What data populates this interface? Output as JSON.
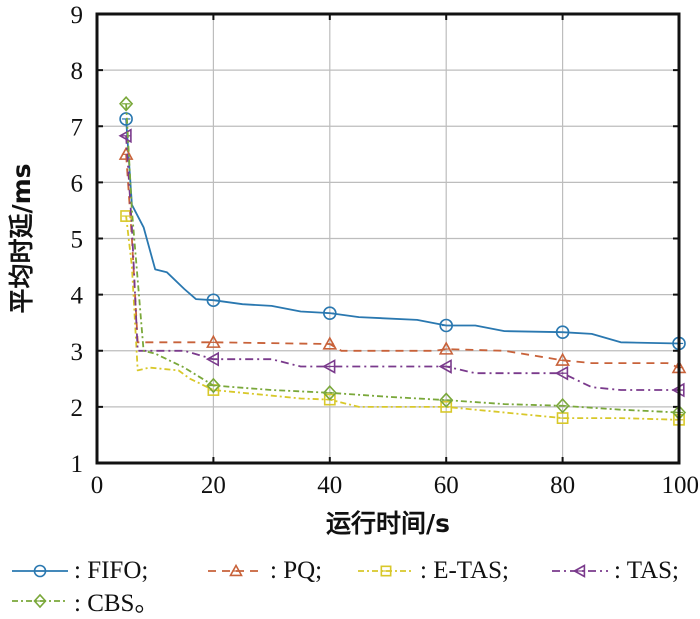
{
  "chart_data": {
    "type": "line",
    "title": "",
    "xlabel": "运行时间/s",
    "ylabel": "平均时延/ms",
    "xlim": [
      0,
      100
    ],
    "ylim": [
      1,
      9
    ],
    "xticks": [
      0,
      20,
      40,
      60,
      80,
      100
    ],
    "yticks": [
      1,
      2,
      3,
      4,
      5,
      6,
      7,
      8,
      9
    ],
    "grid": true,
    "legend_position": "bottom",
    "series": [
      {
        "name": "FIFO",
        "legend_label": ": FIFO;",
        "color": "#2a78b0",
        "dash": "solid",
        "marker": "circle",
        "points": [
          [
            5,
            7.13
          ],
          [
            6,
            5.6
          ],
          [
            8,
            5.2
          ],
          [
            10,
            4.45
          ],
          [
            12,
            4.4
          ],
          [
            15,
            4.1
          ],
          [
            17,
            3.92
          ],
          [
            20,
            3.9
          ],
          [
            25,
            3.83
          ],
          [
            30,
            3.8
          ],
          [
            35,
            3.7
          ],
          [
            40,
            3.67
          ],
          [
            45,
            3.6
          ],
          [
            55,
            3.55
          ],
          [
            60,
            3.45
          ],
          [
            65,
            3.45
          ],
          [
            70,
            3.35
          ],
          [
            80,
            3.33
          ],
          [
            85,
            3.3
          ],
          [
            90,
            3.15
          ],
          [
            100,
            3.13
          ]
        ],
        "marker_x": [
          5,
          20,
          40,
          60,
          80,
          100
        ]
      },
      {
        "name": "PQ",
        "legend_label": ": PQ;",
        "color": "#c8623a",
        "dash": "8,6",
        "marker": "triangle-up",
        "points": [
          [
            5,
            6.5
          ],
          [
            6,
            5.0
          ],
          [
            7,
            3.15
          ],
          [
            20,
            3.15
          ],
          [
            40,
            3.12
          ],
          [
            42,
            3.0
          ],
          [
            58,
            3.0
          ],
          [
            60,
            3.03
          ],
          [
            70,
            3.0
          ],
          [
            80,
            2.83
          ],
          [
            85,
            2.78
          ],
          [
            98,
            2.78
          ],
          [
            100,
            2.7
          ]
        ],
        "marker_x": [
          5,
          20,
          40,
          60,
          80,
          100
        ]
      },
      {
        "name": "E-TAS",
        "legend_label": ": E-TAS;",
        "color": "#d8c82a",
        "dash": "6,3,2,3",
        "marker": "square",
        "points": [
          [
            5,
            5.4
          ],
          [
            6,
            4.5
          ],
          [
            7,
            2.65
          ],
          [
            9,
            2.7
          ],
          [
            14,
            2.65
          ],
          [
            16,
            2.5
          ],
          [
            20,
            2.3
          ],
          [
            25,
            2.25
          ],
          [
            35,
            2.15
          ],
          [
            40,
            2.13
          ],
          [
            45,
            2.0
          ],
          [
            58,
            2.0
          ],
          [
            60,
            2.0
          ],
          [
            70,
            1.9
          ],
          [
            80,
            1.8
          ],
          [
            90,
            1.8
          ],
          [
            100,
            1.77
          ]
        ],
        "marker_x": [
          5,
          20,
          40,
          60,
          80,
          100
        ]
      },
      {
        "name": "TAS",
        "legend_label": ": TAS;",
        "color": "#7a3a8c",
        "dash": "8,4,2,4",
        "marker": "triangle-left",
        "points": [
          [
            5,
            6.83
          ],
          [
            6,
            5.2
          ],
          [
            7,
            3.0
          ],
          [
            12,
            3.0
          ],
          [
            15,
            3.0
          ],
          [
            20,
            2.85
          ],
          [
            30,
            2.85
          ],
          [
            35,
            2.72
          ],
          [
            40,
            2.72
          ],
          [
            58,
            2.72
          ],
          [
            60,
            2.72
          ],
          [
            65,
            2.6
          ],
          [
            80,
            2.6
          ],
          [
            85,
            2.35
          ],
          [
            90,
            2.3
          ],
          [
            100,
            2.3
          ]
        ],
        "marker_x": [
          5,
          20,
          40,
          60,
          80,
          100
        ]
      },
      {
        "name": "CBS",
        "legend_label": ": CBS。",
        "color": "#7aa83a",
        "dash": "6,3,2,3",
        "marker": "diamond",
        "points": [
          [
            5,
            7.4
          ],
          [
            6,
            5.5
          ],
          [
            8,
            3.0
          ],
          [
            10,
            2.95
          ],
          [
            15,
            2.7
          ],
          [
            20,
            2.38
          ],
          [
            30,
            2.3
          ],
          [
            40,
            2.25
          ],
          [
            50,
            2.18
          ],
          [
            60,
            2.12
          ],
          [
            70,
            2.05
          ],
          [
            80,
            2.02
          ],
          [
            90,
            1.95
          ],
          [
            100,
            1.9
          ]
        ],
        "marker_x": [
          5,
          20,
          40,
          60,
          80,
          100
        ]
      }
    ]
  }
}
